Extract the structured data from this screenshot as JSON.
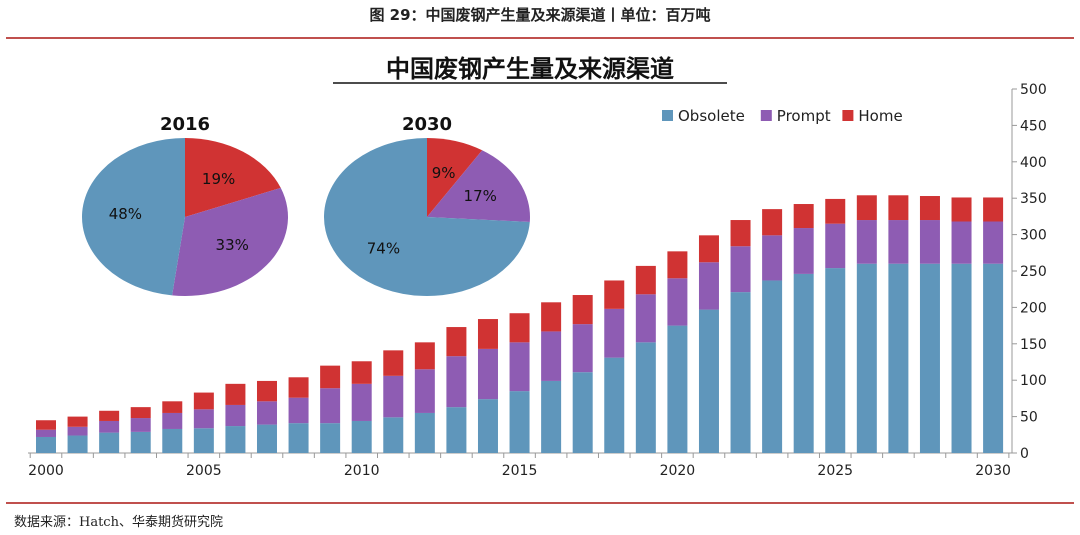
{
  "header": {
    "figure_title": "图 29：中国废钢产生量及来源渠道丨单位：百万吨"
  },
  "footer": {
    "source": "数据来源：Hatch、华泰期货研究院"
  },
  "colors": {
    "obsolete": "#5f96bb",
    "prompt": "#8e5cb3",
    "home": "#d03333",
    "rule": "#c0504d"
  },
  "chart_data": [
    {
      "type": "bar",
      "stacked": true,
      "title": "中国废钢产生量及来源渠道",
      "xlabel": "",
      "ylabel": "",
      "ylim": [
        0,
        500
      ],
      "yticks": [
        0,
        50,
        100,
        150,
        200,
        250,
        300,
        350,
        400,
        450,
        500
      ],
      "xtick_labels": [
        "2000",
        "2005",
        "2010",
        "2015",
        "2020",
        "2025",
        "2030"
      ],
      "y_axis_side": "right",
      "grid": false,
      "legend_placement": "top-right",
      "categories": [
        2000,
        2001,
        2002,
        2003,
        2004,
        2005,
        2006,
        2007,
        2008,
        2009,
        2010,
        2011,
        2012,
        2013,
        2014,
        2015,
        2016,
        2017,
        2018,
        2019,
        2020,
        2021,
        2022,
        2023,
        2024,
        2025,
        2026,
        2027,
        2028,
        2029,
        2030
      ],
      "series": [
        {
          "name": "Obsolete",
          "values": [
            22,
            24,
            28,
            29,
            33,
            34,
            37,
            39,
            41,
            41,
            44,
            49,
            55,
            63,
            74,
            85,
            99,
            111,
            131,
            152,
            175,
            197,
            221,
            237,
            246,
            254,
            260,
            260,
            260,
            260,
            260
          ]
        },
        {
          "name": "Prompt",
          "values": [
            10,
            12,
            16,
            19,
            22,
            26,
            29,
            32,
            35,
            48,
            51,
            57,
            60,
            70,
            69,
            67,
            68,
            66,
            67,
            66,
            65,
            65,
            63,
            62,
            63,
            61,
            60,
            60,
            60,
            58,
            58
          ]
        },
        {
          "name": "Home",
          "values": [
            13,
            14,
            14,
            15,
            16,
            23,
            29,
            28,
            28,
            31,
            31,
            35,
            37,
            40,
            41,
            40,
            40,
            40,
            39,
            39,
            37,
            37,
            36,
            36,
            33,
            34,
            34,
            34,
            33,
            33,
            33
          ]
        }
      ]
    },
    {
      "type": "pie",
      "title": "2016",
      "labels": [
        "Home",
        "Prompt",
        "Obsolete"
      ],
      "values": [
        19,
        33,
        48
      ],
      "value_labels": [
        "19%",
        "33%",
        "48%"
      ]
    },
    {
      "type": "pie",
      "title": "2030",
      "labels": [
        "Home",
        "Prompt",
        "Obsolete"
      ],
      "values": [
        9,
        17,
        74
      ],
      "value_labels": [
        "9%",
        "17%",
        "74%"
      ]
    }
  ]
}
